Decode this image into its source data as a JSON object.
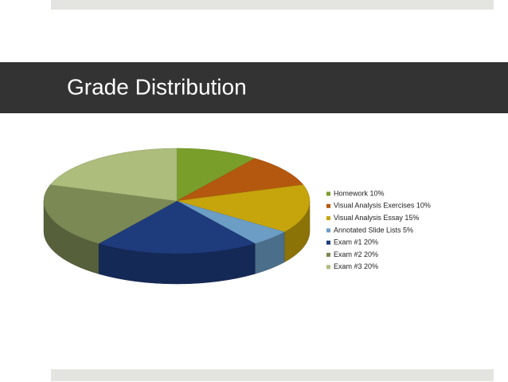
{
  "chart_data": {
    "type": "pie3d",
    "title": "Grade Distribution",
    "categories": [
      "Homework 10%",
      "Visual Analysis Exercises 10%",
      "Visual Analysis Essay 15%",
      "Annotated Slide Lists 5%",
      "Exam #1 20%",
      "Exam #2 20%",
      "Exam #3 20%"
    ],
    "values": [
      10,
      10,
      15,
      5,
      20,
      20,
      20
    ],
    "colors": [
      "#7a9e2a",
      "#b4580f",
      "#c6a40c",
      "#6b9dc5",
      "#1e3b7c",
      "#7b8955",
      "#acbd7c"
    ],
    "legend": "right"
  }
}
